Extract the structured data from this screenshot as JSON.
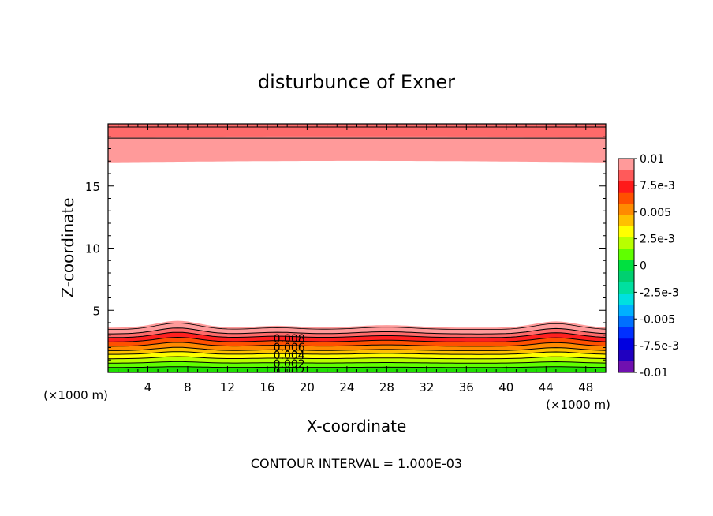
{
  "chart_data": {
    "type": "contour",
    "title": "disturbunce of Exner",
    "xlabel": "X-coordinate",
    "ylabel": "Z-coordinate",
    "x_unit_label": "(×1000 m)",
    "y_unit_label": "(×1000 m)",
    "xlim": [
      0,
      50
    ],
    "ylim": [
      0,
      20
    ],
    "x_ticks": [
      "4",
      "8",
      "12",
      "16",
      "20",
      "24",
      "28",
      "32",
      "36",
      "40",
      "44",
      "48"
    ],
    "y_ticks": [
      "5",
      "10",
      "15"
    ],
    "footer": "CONTOUR INTERVAL = 1.000E-03",
    "contour_labels": [
      "0.008",
      "0.006",
      "0.004",
      "0.002",
      "0.002"
    ],
    "colorbar": {
      "labels": [
        "0.01",
        "7.5e-3",
        "0.005",
        "2.5e-3",
        "0",
        "-2.5e-3",
        "-0.005",
        "-7.5e-3",
        "-0.01"
      ],
      "levels": [
        0.01,
        0.0075,
        0.005,
        0.0025,
        0,
        -0.0025,
        -0.005,
        -0.0075,
        -0.01
      ],
      "colors": [
        "#ff9a9a",
        "#ff5a5a",
        "#ff1a1a",
        "#ff5000",
        "#ff8a00",
        "#ffc000",
        "#ffff00",
        "#b8ff00",
        "#60ff00",
        "#00e040",
        "#00d070",
        "#00e0a0",
        "#00e0e0",
        "#00b0ff",
        "#0070ff",
        "#0030ff",
        "#0000e0",
        "#2000c0",
        "#7010b0"
      ]
    },
    "lower_bands": [
      {
        "level": 0.0095,
        "color": "#ff9a9a"
      },
      {
        "level": 0.009,
        "color": "#ff6a6a"
      },
      {
        "level": 0.008,
        "color": "#ff2020"
      },
      {
        "level": 0.007,
        "color": "#ff5000"
      },
      {
        "level": 0.006,
        "color": "#ff8a00"
      },
      {
        "level": 0.005,
        "color": "#ffc000"
      },
      {
        "level": 0.004,
        "color": "#ffff00"
      },
      {
        "level": 0.003,
        "color": "#b8ff00"
      },
      {
        "level": 0.002,
        "color": "#60ff00"
      },
      {
        "level": 0.001,
        "color": "#20e000"
      }
    ],
    "lower_band_heights_km": [
      3.6,
      3.1,
      2.8,
      2.45,
      2.1,
      1.75,
      1.45,
      1.1,
      0.75,
      0.4
    ],
    "hill_bumps": [
      {
        "x": 7,
        "amp": 0.55,
        "width": 3
      },
      {
        "x": 17,
        "amp": 0.15,
        "width": 3
      },
      {
        "x": 28,
        "amp": 0.2,
        "width": 4
      },
      {
        "x": 45,
        "amp": 0.5,
        "width": 3
      }
    ],
    "upper_bands": [
      {
        "bottom_km": 16.9,
        "color": "#ff9a9a"
      },
      {
        "bottom_km": 18.9,
        "color": "#ff6a6a"
      }
    ],
    "upper_contour_km": [
      18.85,
      19.75
    ]
  }
}
